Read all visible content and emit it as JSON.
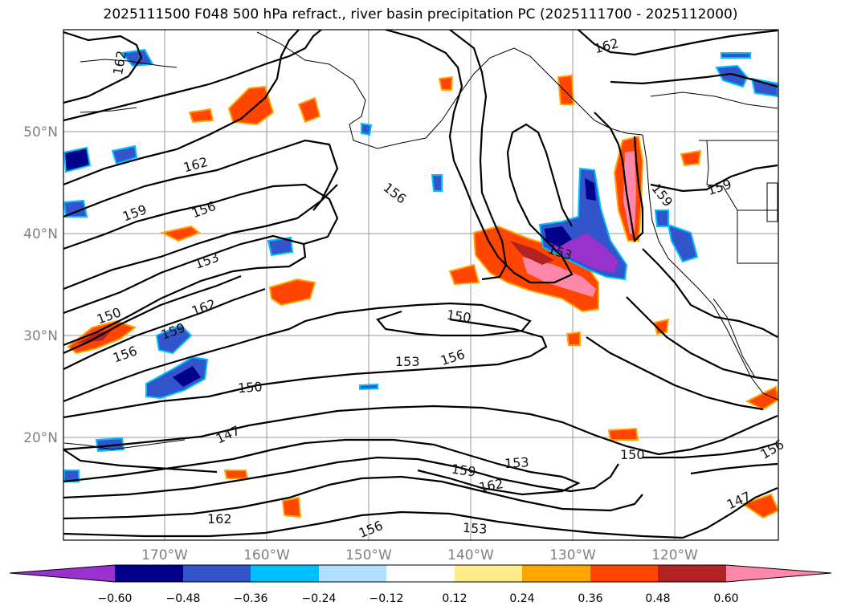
{
  "title": "2025111500 F048 500 hPa refract., river basin precipitation PC (2025111700 - 2025112000)",
  "map": {
    "lat_labels": [
      "50°N",
      "40°N",
      "30°N",
      "20°N"
    ],
    "lon_labels": [
      "170°W",
      "160°W",
      "150°W",
      "140°W",
      "130°W",
      "120°W"
    ],
    "grid": true
  },
  "contour_labels": [
    {
      "text": "162"
    },
    {
      "text": "162"
    },
    {
      "text": "162"
    },
    {
      "text": "159"
    },
    {
      "text": "156"
    },
    {
      "text": "153"
    },
    {
      "text": "162"
    },
    {
      "text": "150"
    },
    {
      "text": "159"
    },
    {
      "text": "156"
    },
    {
      "text": "156"
    },
    {
      "text": "150"
    },
    {
      "text": "153"
    },
    {
      "text": "156"
    },
    {
      "text": "150"
    },
    {
      "text": "147"
    },
    {
      "text": "159"
    },
    {
      "text": "153"
    },
    {
      "text": "162"
    },
    {
      "text": "150"
    },
    {
      "text": "162"
    },
    {
      "text": "156"
    },
    {
      "text": "153"
    },
    {
      "text": "147"
    },
    {
      "text": "159"
    },
    {
      "text": "159"
    },
    {
      "text": "153"
    },
    {
      "text": "156"
    }
  ],
  "colorbar": {
    "colors": [
      "#9932cc",
      "#00008b",
      "#3355cc",
      "#00bfff",
      "#b0e0ff",
      "#ffffff",
      "#ffec8b",
      "#ffa500",
      "#ff4500",
      "#b22222",
      "#ff88aa"
    ],
    "tick_labels": [
      "−0.60",
      "−0.48",
      "−0.36",
      "−0.24",
      "−0.12",
      "0.12",
      "0.24",
      "0.36",
      "0.48",
      "0.60"
    ]
  }
}
